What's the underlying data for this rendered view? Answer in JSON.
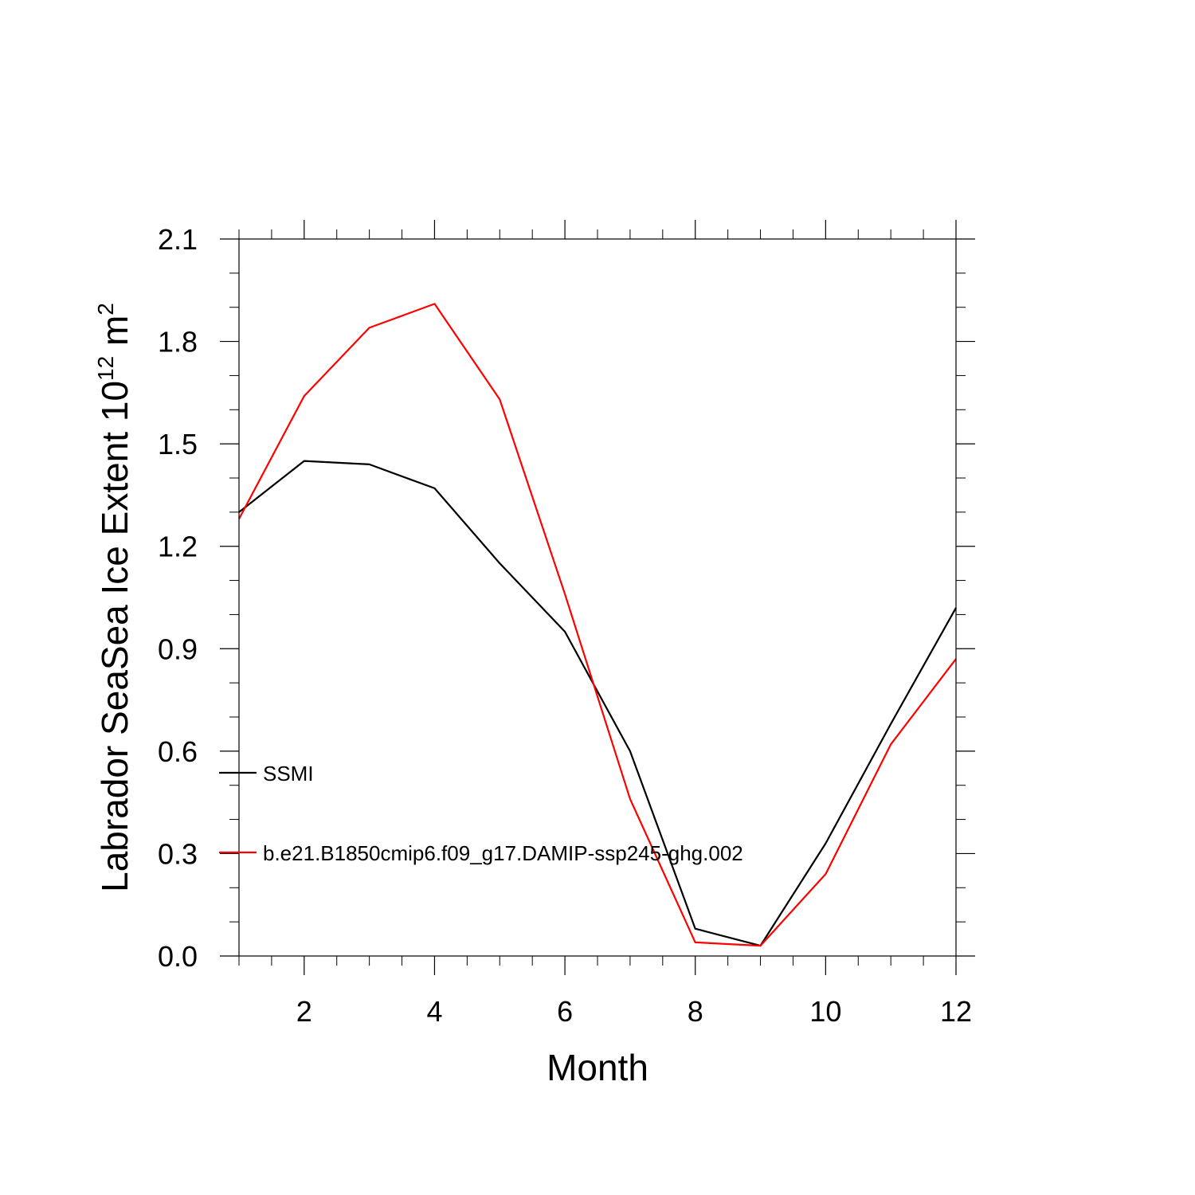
{
  "chart_data": {
    "type": "line",
    "xlabel": "Month",
    "ylabel_main": "Labrador SeaSea Ice Extent 10",
    "ylabel_exp": "12",
    "ylabel_unit": " m",
    "ylabel_unit_exp": "2",
    "xlim": [
      1,
      12
    ],
    "ylim": [
      0,
      2.1
    ],
    "x_ticks": [
      2,
      4,
      6,
      8,
      10,
      12
    ],
    "x_tick_labels": [
      "2",
      "4",
      "6",
      "8",
      "10",
      "12"
    ],
    "y_ticks": [
      0.0,
      0.3,
      0.6,
      0.9,
      1.2,
      1.5,
      1.8,
      2.1
    ],
    "y_tick_labels": [
      "0.0",
      "0.3",
      "0.6",
      "0.9",
      "1.2",
      "1.5",
      "1.8",
      "2.1"
    ],
    "grid": false,
    "legend_position": "left, inside plot",
    "series": [
      {
        "name": "SSMI",
        "color": "#000000",
        "x": [
          1,
          2,
          3,
          4,
          5,
          6,
          7,
          8,
          9,
          10,
          11,
          12
        ],
        "values": [
          1.3,
          1.45,
          1.44,
          1.37,
          1.15,
          0.95,
          0.6,
          0.08,
          0.03,
          0.33,
          0.68,
          1.02
        ]
      },
      {
        "name": "b.e21.B1850cmip6.f09_g17.DAMIP-ssp245-ghg.002",
        "color": "#ff0000",
        "x": [
          1,
          2,
          3,
          4,
          5,
          6,
          7,
          8,
          9,
          10,
          11,
          12
        ],
        "values": [
          1.28,
          1.64,
          1.84,
          1.91,
          1.63,
          1.06,
          0.46,
          0.04,
          0.03,
          0.24,
          0.62,
          0.87
        ]
      }
    ]
  }
}
